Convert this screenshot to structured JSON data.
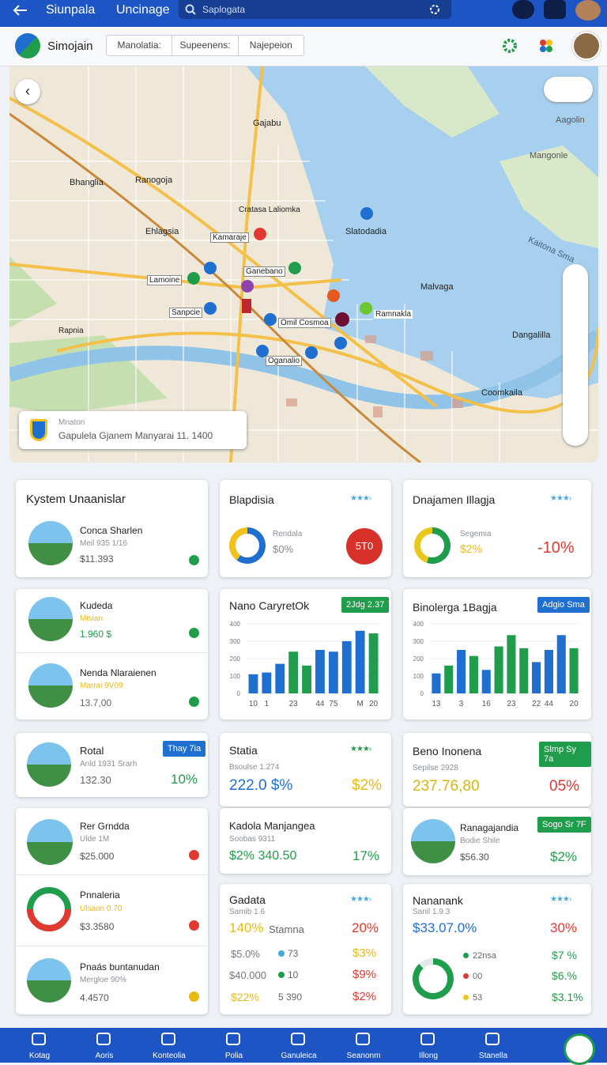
{
  "header": {
    "title": "Siunpala",
    "subtitle": "Uncinage",
    "search": "Saplogata"
  },
  "toolbar": {
    "brand": "Simojain",
    "tabs": [
      "Manolatia:",
      "Supeenens:",
      "Najepeion"
    ]
  },
  "map": {
    "labels": [
      "Gajabu",
      "Bhanglia",
      "Ranogoja",
      "Ehlagsia",
      "Slatodadia",
      "Kamaraje",
      "Ganebano",
      "Lamoine",
      "Sanpcie",
      "Omil Cosmoa",
      "Ramnakla",
      "Oganalio",
      "Dangalilla",
      "Coomkaila",
      "Aagolin",
      "Mangonle",
      "Kaitona Sma",
      "Malvaga",
      "Rapnia",
      "Cratasa Laliomka"
    ],
    "info": {
      "title": "Mnaton",
      "text": "Gapulela Gjanem Manyarai 11. 1400"
    }
  },
  "cards": {
    "kystem": {
      "title": "Kystem Unaanislar",
      "name": "Conca Sharlen",
      "sub": "Meil 935 1/16",
      "price": "$11.393"
    },
    "blapdisia": {
      "title": "Blapdisia",
      "label": "Rendala",
      "value": "$0%",
      "badge": "5T0",
      "donut": [
        {
          "value": 60,
          "color": "#1e6fd0"
        },
        {
          "value": 40,
          "color": "#f2c21b"
        }
      ]
    },
    "dnajamen": {
      "title": "Dnajamen Illagja",
      "label": "Segemia",
      "value": "$2%",
      "change": "-10%",
      "donut": [
        {
          "value": 55,
          "color": "#1f9d4c"
        },
        {
          "value": 45,
          "color": "#e8c91a"
        }
      ]
    },
    "kudeda": {
      "name": "Kudeda",
      "sub": "Misian",
      "price": "1.960 $"
    },
    "nenda": {
      "name": "Nenda Nlaraienen",
      "sub": "Marrai 9V09",
      "price": "13.7,00"
    },
    "chart1": {
      "type": "bar",
      "title": "Nano CaryretOk",
      "badge": "2Jdg 2.37",
      "categories": [
        "10",
        "1",
        null,
        "23",
        null,
        "44",
        "75",
        null,
        "M",
        "20"
      ],
      "values": [
        110,
        120,
        170,
        240,
        160,
        250,
        240,
        300,
        360,
        345
      ],
      "colors": [
        "#1e6fd0",
        "#1e6fd0",
        "#1e6fd0",
        "#1f9d4c",
        "#1f9d4c",
        "#1e6fd0",
        "#1e6fd0",
        "#1e6fd0",
        "#1e6fd0",
        "#1f9d4c"
      ],
      "ylim": [
        0,
        400
      ],
      "yticks": [
        0,
        100,
        200,
        300,
        400
      ],
      "grid": true
    },
    "chart2": {
      "type": "bar",
      "title": "Binolerga 1Bagja",
      "badge": "Adgio Sma",
      "categories": [
        "13",
        null,
        "3",
        null,
        "16",
        null,
        "23",
        null,
        "22",
        "44",
        null,
        "20"
      ],
      "values": [
        115,
        160,
        250,
        215,
        135,
        270,
        335,
        260,
        180,
        250,
        335,
        260
      ],
      "colors": [
        "#1e6fd0",
        "#1f9d4c",
        "#1e6fd0",
        "#1f9d4c",
        "#1e6fd0",
        "#1f9d4c",
        "#1f9d4c",
        "#1f9d4c",
        "#1e6fd0",
        "#1e6fd0",
        "#1e6fd0",
        "#1f9d4c"
      ],
      "ylim": [
        0,
        400
      ],
      "yticks": [
        0,
        100,
        200,
        300,
        400
      ],
      "grid": true
    },
    "rotal": {
      "title": "Rotal",
      "badge": "Thay 7ia",
      "sub": "Anld 1931 Srarh",
      "value": "132.30",
      "change": "10%"
    },
    "statia": {
      "title": "Statia",
      "sub": "Bsoulse 1.274",
      "value": "222.0 $%",
      "change": "$2%"
    },
    "beno": {
      "title": "Beno Inonena",
      "badge": "Slmp Sy 7a",
      "sub": "Sepilse 2928",
      "value": "237.76,80",
      "change": "05%"
    },
    "rer": {
      "name": "Rer Grndda",
      "sub": "Ulde 1M",
      "price": "$25.000"
    },
    "kadola": {
      "title": "Kadola Manjangea",
      "sub": "Soobas 9311",
      "value": "$2% 340.50",
      "change": "17%"
    },
    "ranag": {
      "name": "Ranagajandia",
      "badge": "Sogo Sr 7F",
      "sub": "Bodie Shile",
      "price": "$56.30",
      "change": "$2%"
    },
    "pnnaleria": {
      "name": "Pnnaleria",
      "sub": "Ulsaon 0.70",
      "price": "$3.3580"
    },
    "pnaas": {
      "name": "Pnaás buntanudan",
      "sub": "Mergloe 90%",
      "price": "4.4570"
    },
    "gadata": {
      "title": "Gadata",
      "sub": "Samib 1.6",
      "value": "140%",
      "value_label": "Stamna",
      "change": "20%",
      "rows": [
        [
          "$5.0%",
          "73",
          "$3%"
        ],
        [
          "$40.000",
          "10",
          "$9%"
        ],
        [
          "$22%",
          "5 390",
          "$2%"
        ]
      ]
    },
    "nananank": {
      "title": "Nananank",
      "sub": "Sanil 1.9.3",
      "value": "$33.07.0%",
      "change": "30%",
      "legend": [
        [
          "22nsa",
          "$7 %"
        ],
        [
          "00",
          "$6.%"
        ],
        [
          "53",
          "$3.1%"
        ]
      ],
      "donut": [
        {
          "value": 88,
          "color": "#1f9d4c"
        },
        {
          "value": 12,
          "color": "#e3e7ec"
        }
      ]
    }
  },
  "bottom_nav": [
    "Kotag",
    "Aoris",
    "Konteolia",
    "Polia",
    "Ganuleica",
    "Seanonm",
    "Illong",
    "Stanella"
  ]
}
